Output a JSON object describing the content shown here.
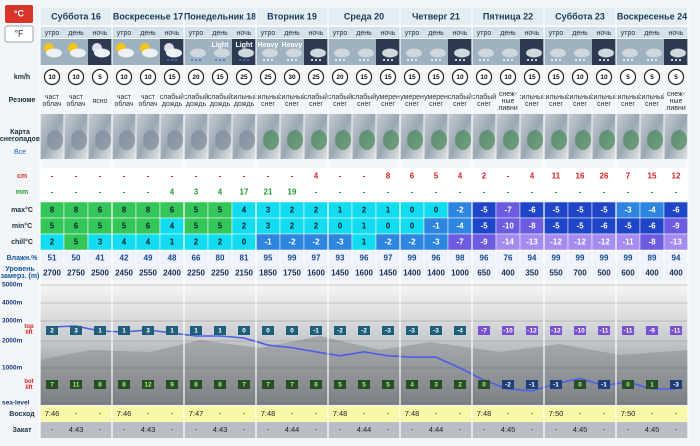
{
  "units": {
    "celsius": "°C",
    "fahrenheit": "°F"
  },
  "days": [
    "Суббота 16",
    "Воскресенье 17",
    "Понедельник 18",
    "Вторник 19",
    "Среда 20",
    "Четверг 21",
    "Пятница 22",
    "Суббота 23",
    "Воскресенье 24"
  ],
  "periods": [
    "утро",
    "день",
    "ночь",
    "утро",
    "день",
    "ночь",
    "утро",
    "день",
    "ночь",
    "утро",
    "день",
    "ночь",
    "утро",
    "день",
    "ночь",
    "утро",
    "день",
    "ночь",
    "утро",
    "день",
    "ночь",
    "утро",
    "день",
    "ночь",
    "утро",
    "день",
    "ночь"
  ],
  "icon_text": [
    null,
    null,
    null,
    null,
    null,
    null,
    null,
    "Light",
    "Light",
    "Heavy",
    "Heavy",
    null,
    null,
    null,
    null,
    null,
    null,
    null,
    null,
    null,
    null,
    null,
    null,
    null,
    null,
    null,
    null
  ],
  "labels": {
    "wind": "km/h",
    "summary": "Резюме",
    "map": "Карта снегопадов",
    "map_link": "Все",
    "snow": "cm",
    "rain": "mm",
    "max": "max°C",
    "min": "min°C",
    "chill": "chill°C",
    "humidity": "Влажн.%",
    "freezing": "Уровень замерз. (m)",
    "sunrise": "Восход",
    "sunset": "Закат"
  },
  "wind": [
    10,
    10,
    5,
    10,
    10,
    15,
    20,
    15,
    25,
    25,
    30,
    25,
    20,
    15,
    15,
    15,
    15,
    10,
    10,
    10,
    15,
    15,
    10,
    10,
    5,
    5,
    5
  ],
  "summary": [
    "част облач",
    "част облач",
    "ясно",
    "част облач",
    "част облач",
    "слабый дождь",
    "слабый дождь",
    "слабый дождь",
    "сильный дождь",
    "сильный снег",
    "сильный снег",
    "слабый снег",
    "слабый снег",
    "слабый снег",
    "умерен снег",
    "умерен снег",
    "умерен снег",
    "слабый снег",
    "слабый снег",
    "снеж-ные ливни",
    "сильный снег",
    "сильный снег",
    "сильный снег",
    "сильный снег",
    "сильный снег",
    "сильный снег",
    "снеж-ные ливни"
  ],
  "snow_cm": [
    "-",
    "-",
    "-",
    "-",
    "-",
    "-",
    "-",
    "-",
    "-",
    "-",
    "-",
    4,
    "-",
    "-",
    8,
    6,
    5,
    4,
    2,
    "-",
    4,
    11,
    16,
    26,
    7,
    15,
    12
  ],
  "rain_mm": [
    "-",
    "-",
    "-",
    "-",
    "-",
    4,
    3,
    4,
    17,
    21,
    19,
    "-",
    "-",
    "-",
    "-",
    "-",
    "-",
    "-",
    "-",
    "-",
    "-",
    "-",
    "-",
    "-",
    "-",
    "-",
    "-"
  ],
  "max": [
    8,
    8,
    6,
    8,
    8,
    6,
    5,
    5,
    4,
    3,
    2,
    2,
    1,
    2,
    1,
    0,
    0,
    -2,
    -5,
    -7,
    -6,
    -5,
    -5,
    -5,
    -3,
    -4,
    -6
  ],
  "min": [
    5,
    6,
    5,
    5,
    6,
    4,
    5,
    5,
    2,
    3,
    2,
    2,
    0,
    1,
    0,
    0,
    -1,
    -4,
    -5,
    -10,
    -8,
    -5,
    -5,
    -6,
    -5,
    -6,
    -9
  ],
  "chill": [
    2,
    5,
    3,
    4,
    4,
    1,
    2,
    2,
    0,
    -1,
    -2,
    -2,
    -3,
    1,
    -2,
    -2,
    -3,
    -7,
    -9,
    -14,
    -13,
    -12,
    -12,
    -12,
    -11,
    -8,
    -13
  ],
  "humidity": [
    51,
    50,
    41,
    42,
    49,
    48,
    66,
    80,
    81,
    95,
    99,
    97,
    93,
    96,
    97,
    99,
    96,
    98,
    96,
    76,
    94,
    99,
    99,
    99,
    99,
    89,
    94
  ],
  "freezing": [
    2700,
    2750,
    2500,
    2450,
    2550,
    2400,
    2250,
    2250,
    2150,
    1850,
    1750,
    1600,
    1450,
    1600,
    1450,
    1400,
    1400,
    1000,
    650,
    400,
    350,
    550,
    700,
    500,
    600,
    400,
    400
  ],
  "sunrise": [
    "7:46",
    "-",
    "-",
    "7:46",
    "-",
    "-",
    "7:47",
    "-",
    "-",
    "7:48",
    "-",
    "-",
    "7:48",
    "-",
    "-",
    "7:48",
    "-",
    "-",
    "7:48",
    "-",
    "-",
    "7:50",
    "-",
    "-",
    "7:50",
    "-",
    "-"
  ],
  "sunset": [
    "-",
    "4:43",
    "-",
    "-",
    "4:43",
    "-",
    "-",
    "4:43",
    "-",
    "-",
    "4:44",
    "-",
    "-",
    "4:44",
    "-",
    "-",
    "4:44",
    "-",
    "-",
    "4:45",
    "-",
    "-",
    "4:45",
    "-",
    "-",
    "4:45",
    "-"
  ],
  "graph": {
    "yticks": [
      {
        "value": 5000,
        "label": "5000m"
      },
      {
        "value": 4000,
        "label": "4000m"
      },
      {
        "value": 3000,
        "label": "3000m"
      },
      {
        "value": 2000,
        "label": "2000m"
      },
      {
        "value": 1000,
        "label": "1000m"
      },
      {
        "value": 0,
        "label": "sea-level"
      }
    ],
    "top_lift_label": "top lift",
    "bot_lift_label": "bot lift",
    "top_temps": [
      2,
      3,
      1,
      1,
      3,
      1,
      1,
      1,
      0,
      0,
      0,
      -1,
      -2,
      -2,
      -3,
      -3,
      -3,
      -4,
      -7,
      -10,
      -12,
      -12,
      -10,
      -11,
      -11,
      -9,
      -11
    ],
    "bot_temps": [
      7,
      11,
      8,
      8,
      12,
      9,
      8,
      8,
      7,
      7,
      7,
      6,
      5,
      5,
      5,
      4,
      3,
      2,
      0,
      -2,
      -1,
      -1,
      0,
      -1,
      0,
      1,
      -3
    ]
  }
}
